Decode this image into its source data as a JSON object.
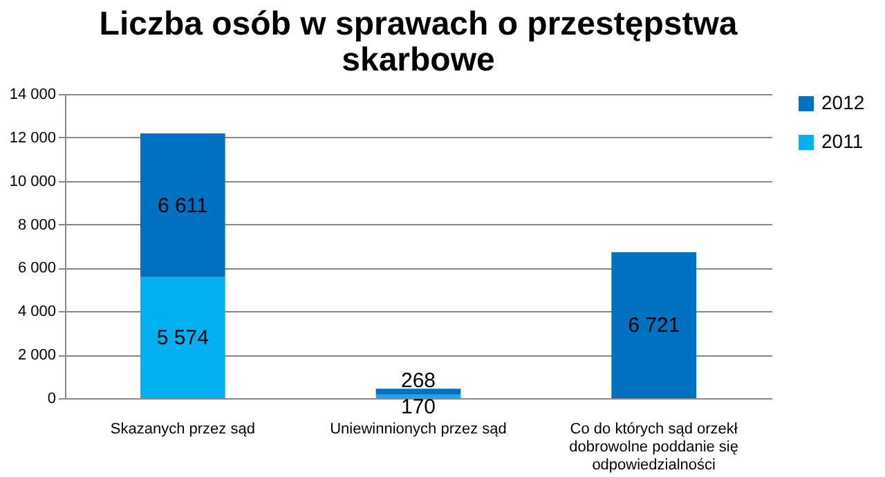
{
  "chart_data": {
    "type": "bar",
    "title": "Liczba osób w sprawach o przestępstwa skarbowe",
    "categories": [
      "Skazanych przez sąd",
      "Uniewinnionych przez sąd",
      "Co do których sąd orzekł dobrowolne poddanie się odpowiedzialności"
    ],
    "series": [
      {
        "name": "2011",
        "color": "#00b0f0",
        "values": [
          5574,
          170,
          null
        ]
      },
      {
        "name": "2012",
        "color": "#0070c0",
        "values": [
          6611,
          268,
          6721
        ]
      }
    ],
    "stacked": true,
    "data_labels": true,
    "ylim": [
      0,
      14000
    ],
    "yticks": [
      {
        "value": 0,
        "label": "0"
      },
      {
        "value": 2000,
        "label": "2 000"
      },
      {
        "value": 4000,
        "label": "4 000"
      },
      {
        "value": 6000,
        "label": "6 000"
      },
      {
        "value": 8000,
        "label": "8 000"
      },
      {
        "value": 10000,
        "label": "10 000"
      },
      {
        "value": 12000,
        "label": "12 000"
      },
      {
        "value": 14000,
        "label": "14 000"
      }
    ],
    "grid": "y",
    "legend": "right"
  }
}
